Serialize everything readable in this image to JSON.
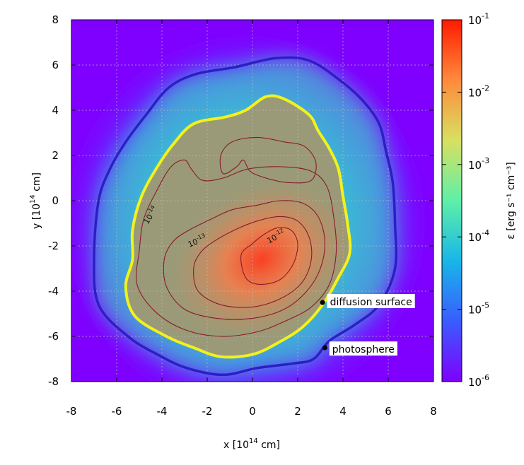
{
  "chart_data": {
    "type": "heatmap",
    "title": "",
    "xlabel": {
      "prefix": "x [10",
      "exp": "14",
      "suffix": " cm]"
    },
    "ylabel": {
      "prefix": "y [10",
      "exp": "14",
      "suffix": " cm]"
    },
    "xlim": [
      -8,
      8
    ],
    "ylim": [
      -8,
      8
    ],
    "xticks": [
      -8,
      -6,
      -4,
      -2,
      0,
      2,
      4,
      6,
      8
    ],
    "yticks": [
      -8,
      -6,
      -4,
      -2,
      0,
      2,
      4,
      6,
      8
    ],
    "grid": true,
    "colorbar": {
      "label": "ε [erg s⁻¹ cm⁻³]",
      "scale": "log",
      "range": [
        1e-06,
        0.1
      ],
      "ticks": [
        {
          "value": -1,
          "mant": "10",
          "exp": "-1"
        },
        {
          "value": -2,
          "mant": "10",
          "exp": "-2"
        },
        {
          "value": -3,
          "mant": "10",
          "exp": "-3"
        },
        {
          "value": -4,
          "mant": "10",
          "exp": "-4"
        },
        {
          "value": -5,
          "mant": "10",
          "exp": "-5"
        },
        {
          "value": -6,
          "mant": "10",
          "exp": "-6"
        }
      ],
      "colormap": [
        "#7f00ff",
        "#3a5cff",
        "#18b6e8",
        "#5ef0a8",
        "#d8e060",
        "#ff8a3c",
        "#ff1a00"
      ]
    },
    "contour_labels": [
      {
        "mant": "10",
        "exp": "-14",
        "x": -4.4,
        "y": -0.7,
        "angle": -58
      },
      {
        "mant": "10",
        "exp": "-13",
        "x": -2.4,
        "y": -1.9,
        "angle": -22
      },
      {
        "mant": "10",
        "exp": "-12",
        "x": 1.1,
        "y": -1.7,
        "angle": -28
      }
    ],
    "annotations": [
      {
        "text": "diffusion surface",
        "point": [
          3.1,
          -4.5
        ],
        "label_pos": [
          3.3,
          -4.5
        ]
      },
      {
        "text": "photosphere",
        "point": [
          3.2,
          -6.5
        ],
        "label_pos": [
          3.4,
          -6.6
        ]
      }
    ],
    "diffusion_surface": [
      [
        -5.3,
        -2.6
      ],
      [
        -5.6,
        -3.8
      ],
      [
        -5.2,
        -5.1
      ],
      [
        -3.8,
        -6.0
      ],
      [
        -2.6,
        -6.5
      ],
      [
        -1.4,
        -6.9
      ],
      [
        0.0,
        -6.8
      ],
      [
        1.1,
        -6.3
      ],
      [
        2.2,
        -5.6
      ],
      [
        3.1,
        -4.6
      ],
      [
        3.8,
        -3.4
      ],
      [
        4.3,
        -2.3
      ],
      [
        4.2,
        -1.0
      ],
      [
        4.0,
        0.2
      ],
      [
        3.8,
        1.4
      ],
      [
        3.4,
        2.3
      ],
      [
        2.9,
        3.1
      ],
      [
        2.5,
        3.8
      ],
      [
        1.4,
        4.5
      ],
      [
        0.6,
        4.6
      ],
      [
        -0.3,
        4.0
      ],
      [
        -1.2,
        3.7
      ],
      [
        -2.6,
        3.4
      ],
      [
        -3.5,
        2.5
      ],
      [
        -4.2,
        1.5
      ],
      [
        -4.9,
        0.2
      ],
      [
        -5.3,
        -1.3
      ]
    ],
    "photosphere": [
      [
        -7.0,
        -2.5
      ],
      [
        -6.8,
        -4.6
      ],
      [
        -5.5,
        -6.0
      ],
      [
        -4.2,
        -6.8
      ],
      [
        -2.9,
        -7.4
      ],
      [
        -1.3,
        -7.7
      ],
      [
        0.2,
        -7.4
      ],
      [
        1.8,
        -7.2
      ],
      [
        2.7,
        -7.0
      ],
      [
        3.4,
        -6.2
      ],
      [
        4.5,
        -5.5
      ],
      [
        5.6,
        -4.6
      ],
      [
        6.3,
        -3.0
      ],
      [
        6.3,
        -1.0
      ],
      [
        6.2,
        0.8
      ],
      [
        5.9,
        2.2
      ],
      [
        5.6,
        3.4
      ],
      [
        4.9,
        4.4
      ],
      [
        3.9,
        5.3
      ],
      [
        2.5,
        6.2
      ],
      [
        1.0,
        6.3
      ],
      [
        -0.8,
        5.9
      ],
      [
        -2.5,
        5.6
      ],
      [
        -3.7,
        5.0
      ],
      [
        -4.7,
        3.8
      ],
      [
        -5.6,
        2.6
      ],
      [
        -6.3,
        1.4
      ],
      [
        -6.8,
        0.0
      ]
    ],
    "contours": [
      [
        [
          -5.0,
          -2.2
        ],
        [
          -5.1,
          -3.7
        ],
        [
          -4.3,
          -4.9
        ],
        [
          -3.0,
          -5.7
        ],
        [
          -1.4,
          -6.0
        ],
        [
          0.2,
          -5.8
        ],
        [
          1.5,
          -5.3
        ],
        [
          2.6,
          -4.7
        ],
        [
          3.4,
          -3.7
        ],
        [
          3.7,
          -2.3
        ],
        [
          3.6,
          -0.8
        ],
        [
          3.3,
          0.6
        ],
        [
          2.6,
          1.3
        ],
        [
          1.3,
          1.5
        ],
        [
          -0.2,
          1.4
        ],
        [
          -1.3,
          1.0
        ],
        [
          -2.2,
          0.9
        ],
        [
          -2.7,
          1.4
        ],
        [
          -3.0,
          1.8
        ],
        [
          -3.6,
          1.5
        ],
        [
          -4.2,
          0.5
        ],
        [
          -4.8,
          -0.8
        ]
      ],
      [
        [
          -1.3,
          1.2
        ],
        [
          -1.4,
          2.0
        ],
        [
          -0.9,
          2.6
        ],
        [
          0.2,
          2.8
        ],
        [
          1.4,
          2.6
        ],
        [
          2.3,
          2.4
        ],
        [
          2.8,
          1.7
        ],
        [
          2.6,
          0.9
        ],
        [
          1.6,
          0.8
        ],
        [
          0.6,
          1.0
        ],
        [
          -0.1,
          1.3
        ],
        [
          -0.4,
          1.8
        ],
        [
          -0.7,
          1.5
        ]
      ],
      [
        [
          -3.9,
          -2.6
        ],
        [
          -3.8,
          -3.8
        ],
        [
          -3.0,
          -4.8
        ],
        [
          -1.6,
          -5.2
        ],
        [
          0.0,
          -5.2
        ],
        [
          1.4,
          -4.8
        ],
        [
          2.4,
          -4.0
        ],
        [
          3.0,
          -3.0
        ],
        [
          3.2,
          -1.8
        ],
        [
          2.9,
          -0.7
        ],
        [
          2.2,
          -0.1
        ],
        [
          1.2,
          0.0
        ],
        [
          0.2,
          -0.2
        ],
        [
          -0.9,
          -0.4
        ],
        [
          -1.8,
          -0.8
        ],
        [
          -2.8,
          -1.3
        ],
        [
          -3.5,
          -1.8
        ]
      ],
      [
        [
          -2.6,
          -3.0
        ],
        [
          -2.4,
          -4.0
        ],
        [
          -1.4,
          -4.6
        ],
        [
          0.0,
          -4.7
        ],
        [
          1.3,
          -4.3
        ],
        [
          2.2,
          -3.6
        ],
        [
          2.6,
          -2.6
        ],
        [
          2.5,
          -1.6
        ],
        [
          2.0,
          -0.9
        ],
        [
          1.2,
          -0.7
        ],
        [
          0.2,
          -0.9
        ],
        [
          -0.8,
          -1.3
        ],
        [
          -1.7,
          -1.8
        ],
        [
          -2.3,
          -2.3
        ]
      ],
      [
        [
          -0.5,
          -2.4
        ],
        [
          -0.3,
          -3.4
        ],
        [
          0.3,
          -3.7
        ],
        [
          1.2,
          -3.5
        ],
        [
          1.8,
          -2.8
        ],
        [
          2.0,
          -1.9
        ],
        [
          1.7,
          -1.3
        ],
        [
          1.1,
          -1.2
        ],
        [
          0.5,
          -1.5
        ],
        [
          0.0,
          -1.9
        ]
      ]
    ],
    "peak": [
      1.0,
      -2.8
    ]
  }
}
